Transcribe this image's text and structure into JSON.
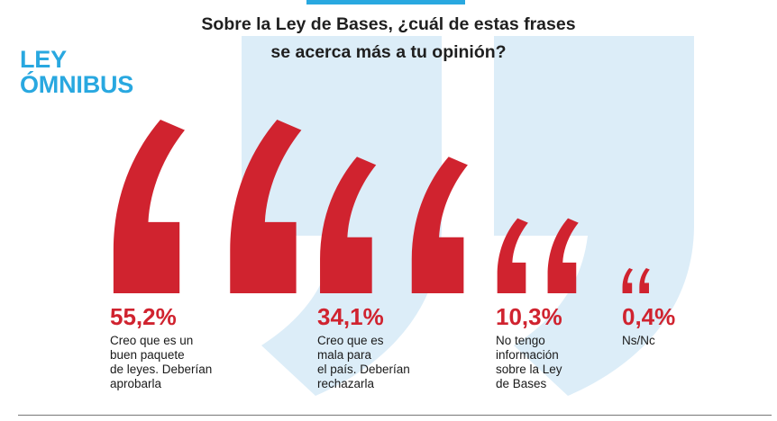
{
  "header": {
    "question_line1": "Sobre la Ley de Bases, ¿cuál de estas frases",
    "question_line2": "se acerca más a tu opinión?"
  },
  "brand": {
    "line1": "LEY",
    "line2": "ÓMNIBUS"
  },
  "colors": {
    "accent_red": "#d0232f",
    "brand_blue": "#29a8e0",
    "quote_bg_blue": "#dcedf8"
  },
  "chart_data": {
    "type": "bar",
    "title": "Sobre la Ley de Bases, ¿cuál de estas frases se acerca más a tu opinión?",
    "unit": "%",
    "categories": [
      "Creo que es un buen paquete de leyes. Deberían aprobarla",
      "Creo que es mala para el país. Deberían rechazarla",
      "No tengo información sobre la Ley de Bases",
      "Ns/Nc"
    ],
    "values": [
      55.2,
      34.1,
      10.3,
      0.4
    ],
    "value_labels": [
      "55,2%",
      "34,1%",
      "10,3%",
      "0,4%"
    ],
    "description_lines": [
      [
        "Creo que es un",
        "buen paquete",
        "de leyes. Deberían",
        "aprobarla"
      ],
      [
        "Creo que es",
        "mala para",
        "el país. Deberían",
        "rechazarla"
      ],
      [
        "No tengo",
        "información",
        "sobre la Ley",
        "de Bases"
      ],
      [
        "Ns/Nc"
      ]
    ]
  }
}
